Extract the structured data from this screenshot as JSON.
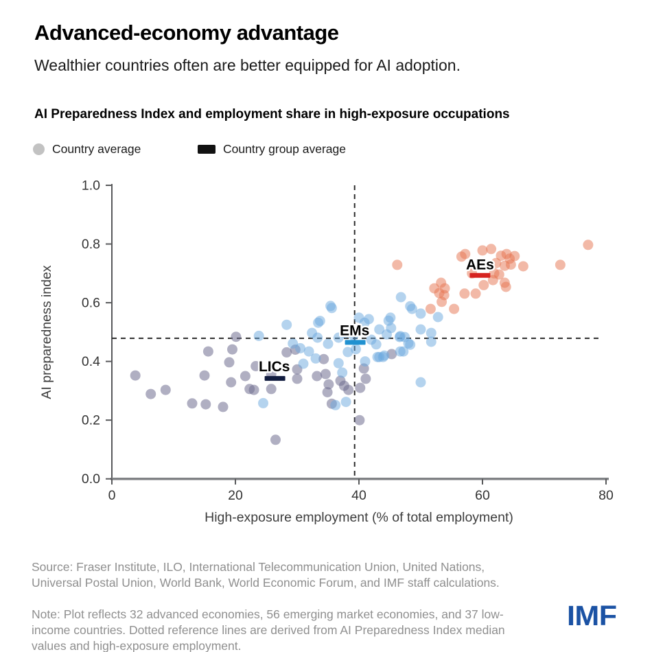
{
  "header": {
    "title": "Advanced-economy advantage",
    "subtitle": "Wealthier countries often are better equipped for AI adoption.",
    "chart_title": "AI Preparedness Index and employment share in high-exposure occupations"
  },
  "legend": {
    "country_average_label": "Country average",
    "country_average_color": "#c2c2c2",
    "country_group_average_label": "Country group average",
    "country_group_average_color": "#111111"
  },
  "chart_data": {
    "type": "scatter",
    "xlabel": "High-exposure employment (% of total employment)",
    "ylabel": "AI preparedness index",
    "xlim": [
      0,
      80
    ],
    "ylim": [
      0.0,
      1.0
    ],
    "x_ticks": [
      0,
      20,
      40,
      60,
      80
    ],
    "y_ticks": [
      0.0,
      0.2,
      0.4,
      0.6,
      0.8,
      1.0
    ],
    "grid": false,
    "reference_lines": {
      "x": 39.3,
      "y": 0.479,
      "style": "dashed",
      "color": "#2b2b2b"
    },
    "series": [
      {
        "name": "AEs",
        "label": "AEs",
        "group": "Advanced economies",
        "color": "#e5744f",
        "opacity": 0.5,
        "avg_color": "#d62320",
        "avg": [
          59.6,
          0.693
        ],
        "label_pos": [
          59.6,
          0.714
        ],
        "points": [
          [
            46.2,
            0.729
          ],
          [
            51.6,
            0.579
          ],
          [
            52.2,
            0.649
          ],
          [
            53.0,
            0.633
          ],
          [
            53.3,
            0.668
          ],
          [
            53.8,
            0.626
          ],
          [
            53.9,
            0.649
          ],
          [
            53.4,
            0.603
          ],
          [
            55.4,
            0.579
          ],
          [
            57.1,
            0.631
          ],
          [
            58.9,
            0.631
          ],
          [
            56.6,
            0.757
          ],
          [
            57.2,
            0.766
          ],
          [
            60.0,
            0.778
          ],
          [
            61.4,
            0.783
          ],
          [
            63.9,
            0.766
          ],
          [
            64.4,
            0.75
          ],
          [
            65.2,
            0.759
          ],
          [
            63.6,
            0.726
          ],
          [
            66.6,
            0.724
          ],
          [
            61.9,
            0.7
          ],
          [
            62.7,
            0.696
          ],
          [
            63.6,
            0.668
          ],
          [
            63.8,
            0.654
          ],
          [
            61.7,
            0.677
          ],
          [
            72.6,
            0.729
          ],
          [
            77.1,
            0.797
          ],
          [
            63.0,
            0.76
          ],
          [
            62.2,
            0.735
          ],
          [
            64.6,
            0.73
          ],
          [
            58.3,
            0.7
          ],
          [
            60.2,
            0.66
          ]
        ]
      },
      {
        "name": "EMs",
        "label": "EMs",
        "group": "Emerging market economies",
        "color": "#6aa7dd",
        "opacity": 0.5,
        "avg_color": "#2191d0",
        "avg": [
          39.4,
          0.465
        ],
        "label_pos": [
          39.3,
          0.489
        ],
        "points": [
          [
            23.8,
            0.487
          ],
          [
            24.5,
            0.258
          ],
          [
            28.3,
            0.525
          ],
          [
            35.6,
            0.582
          ],
          [
            33.4,
            0.532
          ],
          [
            32.4,
            0.497
          ],
          [
            33.3,
            0.481
          ],
          [
            31.9,
            0.434
          ],
          [
            31.0,
            0.392
          ],
          [
            35.4,
            0.589
          ],
          [
            33.7,
            0.538
          ],
          [
            36.7,
            0.394
          ],
          [
            37.3,
            0.362
          ],
          [
            36.7,
            0.481
          ],
          [
            37.8,
            0.497
          ],
          [
            38.2,
            0.432
          ],
          [
            40.0,
            0.549
          ],
          [
            41.6,
            0.544
          ],
          [
            40.9,
            0.532
          ],
          [
            42.0,
            0.474
          ],
          [
            43.3,
            0.509
          ],
          [
            45.1,
            0.549
          ],
          [
            45.2,
            0.514
          ],
          [
            43.3,
            0.415
          ],
          [
            44.1,
            0.42
          ],
          [
            46.6,
            0.483
          ],
          [
            47.4,
            0.483
          ],
          [
            47.2,
            0.434
          ],
          [
            48.3,
            0.457
          ],
          [
            48.3,
            0.588
          ],
          [
            46.8,
            0.619
          ],
          [
            50.0,
            0.563
          ],
          [
            50.0,
            0.329
          ],
          [
            44.8,
            0.539
          ],
          [
            48.6,
            0.579
          ],
          [
            52.8,
            0.551
          ],
          [
            50.0,
            0.509
          ],
          [
            51.7,
            0.497
          ],
          [
            51.7,
            0.467
          ],
          [
            48.0,
            0.462
          ],
          [
            46.7,
            0.486
          ],
          [
            46.7,
            0.434
          ],
          [
            43.0,
            0.415
          ],
          [
            43.9,
            0.415
          ],
          [
            36.2,
            0.251
          ],
          [
            37.9,
            0.262
          ],
          [
            39.1,
            0.489
          ],
          [
            38.6,
            0.51
          ],
          [
            35.0,
            0.46
          ],
          [
            33.0,
            0.41
          ],
          [
            30.5,
            0.445
          ],
          [
            29.3,
            0.461
          ],
          [
            41.0,
            0.4
          ],
          [
            42.8,
            0.458
          ],
          [
            44.5,
            0.492
          ],
          [
            39.5,
            0.442
          ]
        ]
      },
      {
        "name": "LICs",
        "label": "LICs",
        "group": "Low-income countries",
        "color": "#6f6d8f",
        "opacity": 0.55,
        "avg_color": "#111c3f",
        "avg": [
          26.4,
          0.342
        ],
        "label_pos": [
          26.3,
          0.366
        ],
        "points": [
          [
            3.8,
            0.352
          ],
          [
            6.3,
            0.289
          ],
          [
            8.7,
            0.303
          ],
          [
            13.0,
            0.257
          ],
          [
            15.2,
            0.254
          ],
          [
            18.0,
            0.245
          ],
          [
            15.6,
            0.434
          ],
          [
            15.0,
            0.352
          ],
          [
            19.0,
            0.397
          ],
          [
            19.3,
            0.329
          ],
          [
            20.1,
            0.484
          ],
          [
            19.5,
            0.441
          ],
          [
            21.6,
            0.35
          ],
          [
            22.3,
            0.306
          ],
          [
            23.3,
            0.384
          ],
          [
            25.8,
            0.357
          ],
          [
            25.8,
            0.306
          ],
          [
            26.5,
            0.133
          ],
          [
            28.3,
            0.431
          ],
          [
            29.7,
            0.44
          ],
          [
            30.0,
            0.341
          ],
          [
            30.0,
            0.373
          ],
          [
            33.2,
            0.35
          ],
          [
            34.3,
            0.408
          ],
          [
            34.6,
            0.357
          ],
          [
            35.1,
            0.322
          ],
          [
            34.9,
            0.295
          ],
          [
            37.0,
            0.334
          ],
          [
            37.6,
            0.317
          ],
          [
            40.8,
            0.376
          ],
          [
            41.1,
            0.341
          ],
          [
            40.2,
            0.31
          ],
          [
            40.1,
            0.2
          ],
          [
            45.3,
            0.425
          ],
          [
            35.6,
            0.256
          ],
          [
            23.0,
            0.303
          ],
          [
            38.3,
            0.303
          ]
        ]
      }
    ]
  },
  "footer": {
    "source": "Source: Fraser Institute, ILO, International Telecommunication Union, United Nations,\nUniversal Postal Union, World Bank, World Economic Forum, and IMF staff calculations.",
    "note": "Note: Plot reflects 32 advanced economies, 56 emerging market economies, and 37 low-\nincome countries. Dotted reference lines are derived from AI Preparedness Index median\nvalues and high-exposure employment.",
    "logo": "IMF",
    "logo_color": "#1b52a4"
  }
}
